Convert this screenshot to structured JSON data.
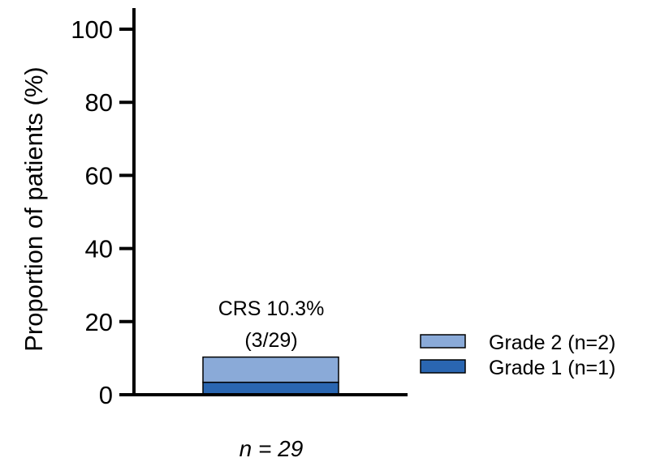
{
  "chart_data": {
    "type": "bar",
    "stacked": true,
    "categories": [
      ""
    ],
    "series": [
      {
        "name": "Grade 1 (n=1)",
        "values": [
          3.4
        ],
        "color": "#2a66b1"
      },
      {
        "name": "Grade 2 (n=2)",
        "values": [
          6.9
        ],
        "color": "#8aaad8"
      }
    ],
    "total": 10.3,
    "ylabel": "Proportion of patients (%)",
    "xlabel": "n = 29",
    "ylim": [
      0,
      100
    ],
    "yticks": [
      "0",
      "20",
      "40",
      "60",
      "80",
      "100"
    ],
    "annotation": {
      "line1": "CRS 10.3%",
      "line2": "(3/29)"
    },
    "legend": {
      "placement": "right",
      "items": [
        {
          "label": "Grade 2 (n=2)",
          "color": "#8aaad8"
        },
        {
          "label": "Grade 1 (n=1)",
          "color": "#2a66b1"
        }
      ]
    },
    "grid": false
  }
}
